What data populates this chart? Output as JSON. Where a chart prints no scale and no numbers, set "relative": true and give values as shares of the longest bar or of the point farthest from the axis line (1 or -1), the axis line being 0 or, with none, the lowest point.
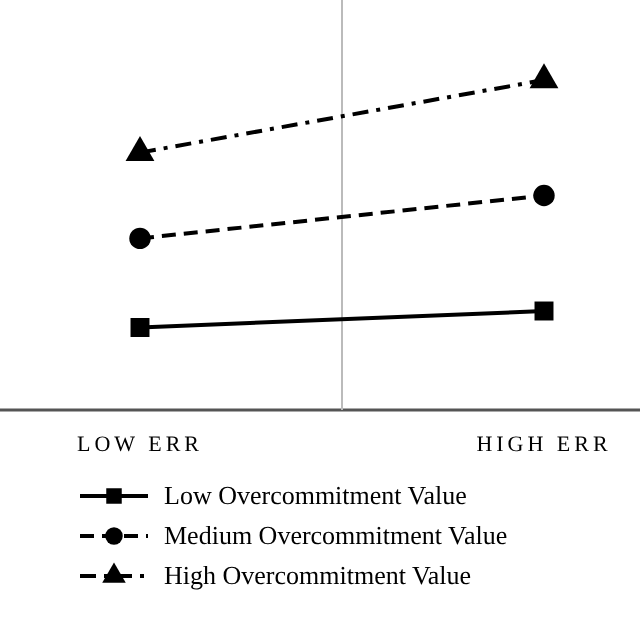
{
  "chart_data": {
    "type": "line",
    "relative": true,
    "categories": [
      "LOW ERR",
      "HIGH ERR"
    ],
    "series": [
      {
        "name": "Low Overcommitment Value",
        "color": "#000000",
        "marker": "square",
        "line_style": "solid",
        "values": [
          0.25,
          0.3
        ]
      },
      {
        "name": "Medium Overcommitment Value",
        "color": "#000000",
        "marker": "circle",
        "line_style": "dashed",
        "values": [
          0.52,
          0.65
        ]
      },
      {
        "name": "High Overcommitment Value",
        "color": "#000000",
        "marker": "triangle",
        "line_style": "dashdot",
        "values": [
          0.78,
          1
        ]
      }
    ],
    "legend": "bottom"
  }
}
